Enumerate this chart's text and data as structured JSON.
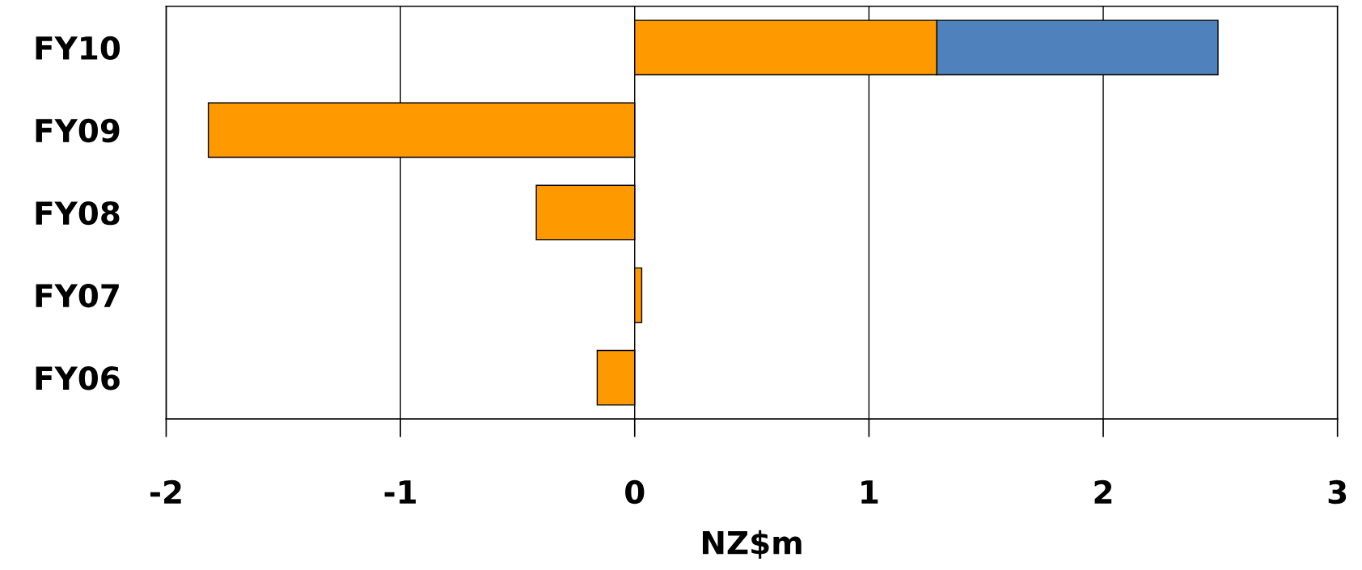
{
  "chart_data": {
    "type": "bar",
    "orientation": "horizontal",
    "stacked": true,
    "xlabel": "NZ$m",
    "categories": [
      "FY10",
      "FY09",
      "FY08",
      "FY07",
      "FY06"
    ],
    "series": [
      {
        "color": "#ff9900",
        "values": [
          1.29,
          -1.82,
          -0.42,
          0.03,
          -0.16
        ]
      },
      {
        "color": "#4f81bd",
        "values": [
          1.2,
          null,
          null,
          null,
          null
        ]
      }
    ],
    "xlim": [
      -2,
      3
    ],
    "xticks": [
      {
        "value": -2,
        "label": "-2"
      },
      {
        "value": -1,
        "label": "-1"
      },
      0,
      1,
      2,
      3
    ],
    "grid": "x",
    "legend": false
  }
}
